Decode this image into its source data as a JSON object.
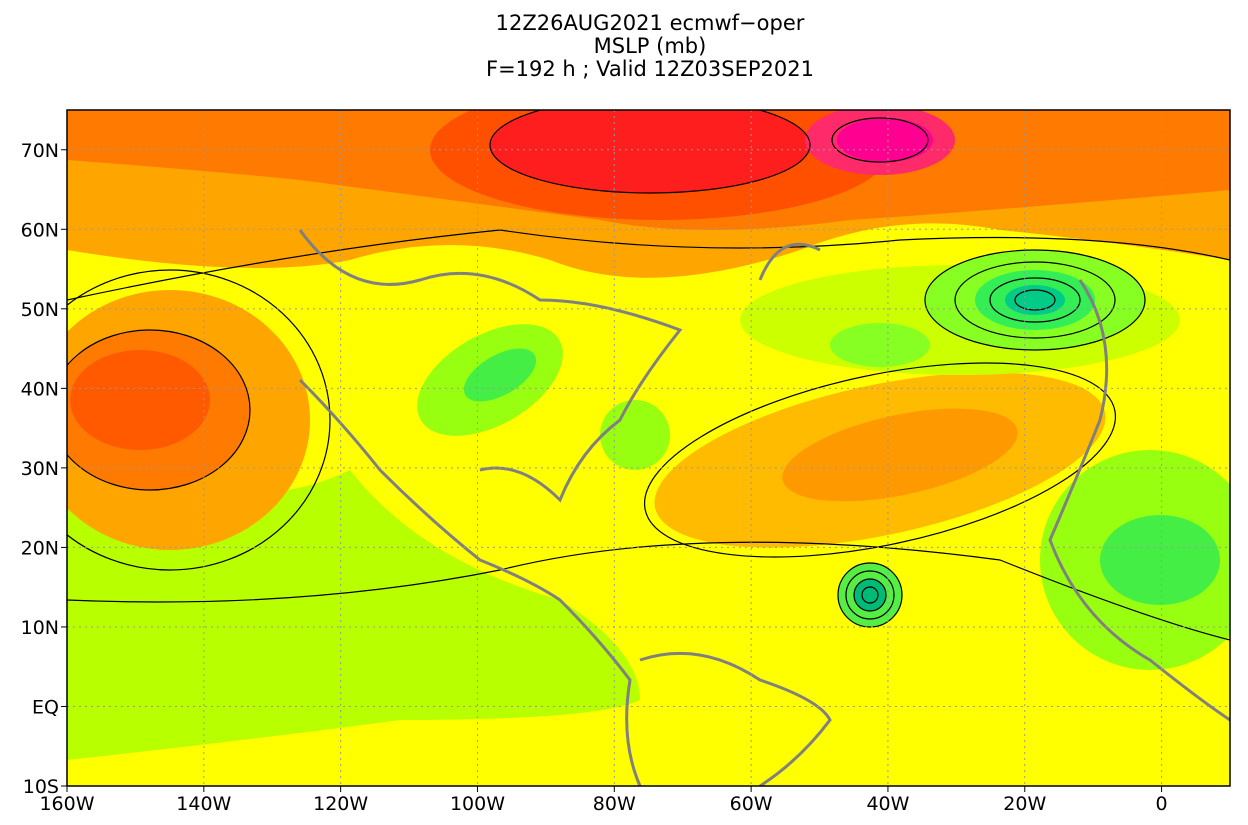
{
  "map": {
    "title_lines": [
      "12Z26AUG2021 ecmwf−oper",
      "MSLP (mb)",
      "F=192 h ; Valid 12Z03SEP2021"
    ],
    "xlim": [
      -160,
      10
    ],
    "ylim": [
      -10,
      75
    ],
    "xticks": [
      {
        "value": -160,
        "label": "160W"
      },
      {
        "value": -140,
        "label": "140W"
      },
      {
        "value": -120,
        "label": "120W"
      },
      {
        "value": -100,
        "label": "100W"
      },
      {
        "value": -80,
        "label": "80W"
      },
      {
        "value": -60,
        "label": "60W"
      },
      {
        "value": -40,
        "label": "40W"
      },
      {
        "value": -20,
        "label": "20W"
      },
      0
    ],
    "yticks": [
      {
        "value": -10,
        "label": "10S"
      },
      {
        "value": 0,
        "label": "EQ"
      },
      {
        "value": 10,
        "label": "10N"
      },
      {
        "value": 20,
        "label": "20N"
      },
      {
        "value": 30,
        "label": "30N"
      },
      {
        "value": 40,
        "label": "40N"
      },
      {
        "value": 50,
        "label": "50N"
      },
      {
        "value": 60,
        "label": "60N"
      },
      {
        "value": 70,
        "label": "70N"
      }
    ],
    "grid": true
  }
}
